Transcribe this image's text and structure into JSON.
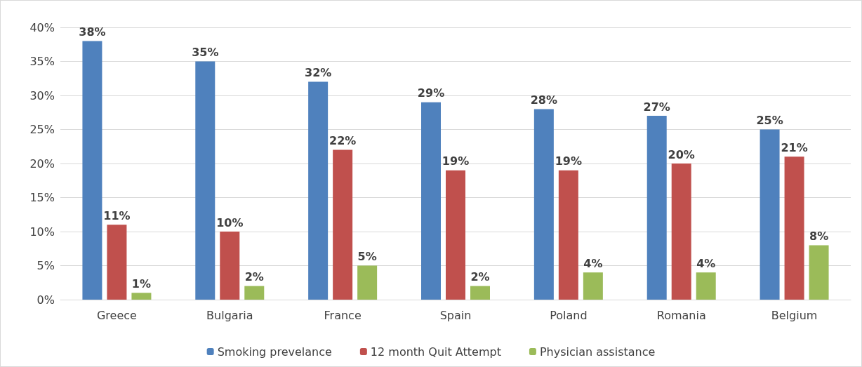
{
  "chart_data": {
    "type": "bar",
    "categories": [
      "Greece",
      "Bulgaria",
      "France",
      "Spain",
      "Poland",
      "Romania",
      "Belgium"
    ],
    "series": [
      {
        "name": "Smoking prevelance",
        "color": "#4f81bd",
        "values": [
          38,
          35,
          32,
          29,
          28,
          27,
          25
        ],
        "value_labels": [
          "38%",
          "35%",
          "32%",
          "29%",
          "28%",
          "27%",
          "25%"
        ]
      },
      {
        "name": "12 month Quit Attempt",
        "color": "#c0504d",
        "values": [
          11,
          10,
          22,
          19,
          19,
          20,
          21
        ],
        "value_labels": [
          "11%",
          "10%",
          "22%",
          "19%",
          "19%",
          "20%",
          "21%"
        ]
      },
      {
        "name": "Physician assistance",
        "color": "#9bbb59",
        "values": [
          1,
          2,
          5,
          2,
          4,
          4,
          8
        ],
        "value_labels": [
          "1%",
          "2%",
          "5%",
          "2%",
          "4%",
          "4%",
          "8%"
        ]
      }
    ],
    "ylim": [
      0,
      40
    ],
    "yticks": [
      {
        "value": 0,
        "label": "0%"
      },
      {
        "value": 5,
        "label": "5%"
      },
      {
        "value": 10,
        "label": "10%"
      },
      {
        "value": 15,
        "label": "15%"
      },
      {
        "value": 20,
        "label": "20%"
      },
      {
        "value": 25,
        "label": "25%"
      },
      {
        "value": 30,
        "label": "30%"
      },
      {
        "value": 35,
        "label": "35%"
      },
      {
        "value": 40,
        "label": "40%"
      }
    ],
    "grid": "y",
    "legend": "bottom"
  }
}
